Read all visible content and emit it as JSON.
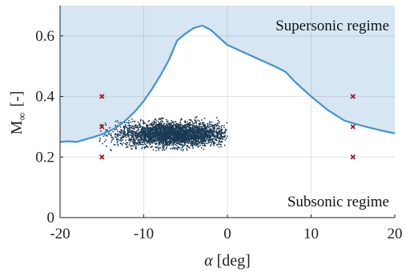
{
  "chart_data": {
    "type": "scatter",
    "title": "",
    "xlabel_symbol": "α",
    "xlabel_unit": "[deg]",
    "ylabel_symbol": "M",
    "ylabel_subscript": "∞",
    "ylabel_unit": "[-]",
    "xlim": [
      -20,
      20
    ],
    "ylim": [
      0,
      0.7
    ],
    "xticks": [
      -20,
      -10,
      0,
      10,
      20
    ],
    "yticks": [
      0,
      0.2,
      0.4,
      0.6
    ],
    "xtick_labels": [
      "-20",
      "-10",
      "0",
      "10",
      "20"
    ],
    "ytick_labels": [
      "0",
      "0.2",
      "0.4",
      "0.6"
    ],
    "grid": true,
    "annotations": [
      {
        "text": "Supersonic regime",
        "region": "top-right"
      },
      {
        "text": "Subsonic regime",
        "region": "bottom-right"
      }
    ],
    "boundary_curve": {
      "x": [
        -20,
        -19,
        -18,
        -17,
        -16,
        -15,
        -14,
        -13,
        -12,
        -11,
        -10,
        -9,
        -8,
        -7,
        -6,
        -5,
        -4,
        -3,
        -2,
        -1,
        0,
        2,
        4,
        6,
        7,
        8,
        10,
        12,
        14,
        15,
        16,
        18,
        20
      ],
      "y": [
        0.25,
        0.252,
        0.25,
        0.258,
        0.266,
        0.275,
        0.287,
        0.302,
        0.325,
        0.352,
        0.385,
        0.425,
        0.47,
        0.52,
        0.585,
        0.608,
        0.626,
        0.634,
        0.62,
        0.595,
        0.57,
        0.545,
        0.52,
        0.495,
        0.48,
        0.45,
        0.4,
        0.355,
        0.32,
        0.312,
        0.304,
        0.29,
        0.278
      ],
      "fill_region": "above",
      "color": "#4593c9",
      "fill_color": "#d6e6f3"
    },
    "marker_points": {
      "x": [
        -15,
        -15,
        -15,
        15,
        15,
        15
      ],
      "y": [
        0.4,
        0.3,
        0.2,
        0.4,
        0.3,
        0.2
      ],
      "marker": "x",
      "color": "#a3172c"
    },
    "sample_cloud": {
      "color": "#1b3a55",
      "center": [
        -6.5,
        0.275
      ],
      "x_range": [
        -15.5,
        0
      ],
      "y_range": [
        0.22,
        0.34
      ],
      "spread": [
        3.3,
        0.02
      ],
      "count": 3200
    }
  }
}
